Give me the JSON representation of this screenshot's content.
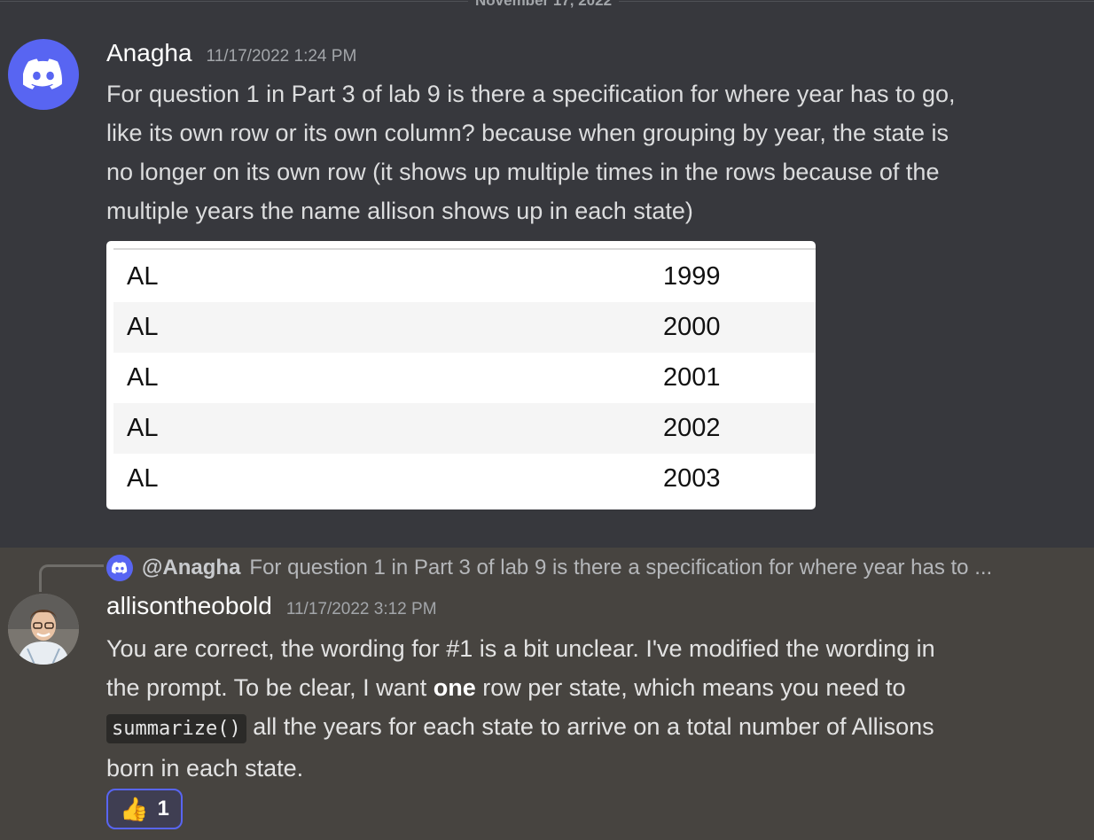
{
  "divider": {
    "date": "November 17, 2022"
  },
  "message1": {
    "author": "Anagha",
    "timestamp": "11/17/2022 1:24 PM",
    "lines": [
      "For question 1 in Part 3 of lab 9 is there a specification for where year has to go,",
      "like its own row or its own column? because when grouping by year, the state is",
      "no longer on its own row (it shows up multiple times in the rows because of the",
      "multiple years the name allison shows up in each state)"
    ],
    "table": [
      {
        "state": "AL",
        "year": "1999"
      },
      {
        "state": "AL",
        "year": "2000"
      },
      {
        "state": "AL",
        "year": "2001"
      },
      {
        "state": "AL",
        "year": "2002"
      },
      {
        "state": "AL",
        "year": "2003"
      }
    ],
    "avatar_icon": "discord-logo-icon",
    "accent": "#5865f2"
  },
  "message2": {
    "reply": {
      "mention": "@Anagha",
      "preview": "For question 1 in Part 3 of lab 9 is there a specification for where year has to ..."
    },
    "author": "allisontheobold",
    "timestamp": "11/17/2022 3:12 PM",
    "line1": "You are correct, the wording for #1 is a bit unclear. I've modified the wording in",
    "line2_before": "the prompt. To be clear, I want ",
    "line2_bold": "one",
    "line2_after": " row per state, which means you need to",
    "code": "summarize()",
    "line3_after": " all the years for each state to arrive on a total number of Allisons",
    "line4": "born in each state.",
    "reaction": {
      "emoji": "👍",
      "count": "1"
    }
  }
}
